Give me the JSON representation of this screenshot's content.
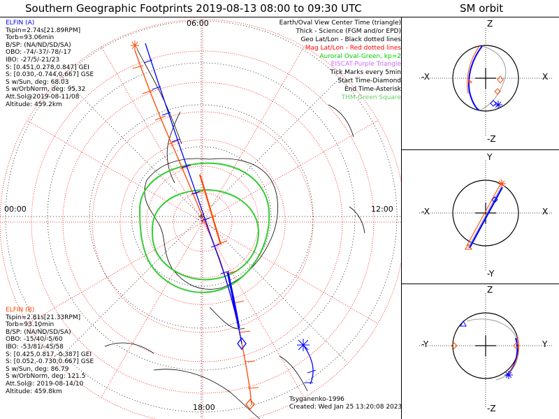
{
  "titles": {
    "main": "Southern Geographic Footprints 2019-08-13 08:00 to 09:30 UTC",
    "orbit": "SM orbit"
  },
  "map_labels": {
    "top": "06:00",
    "left": "00:00",
    "right": "12:00",
    "bottom": "18:00"
  },
  "elfin_a": {
    "name": "ELFIN (A)",
    "color": "#0000ff",
    "lines": [
      "Tspin=2.74s[21.89RPM]",
      "Torb=93.06min",
      "B/SP: (NA/ND/SD/SA)",
      "OBO: -74/-37/-78/-17",
      "IBO: -27/5/-21/23",
      "S: [0.451,0.278,0.847] GEI",
      "S: [0.030,-0.744,0.667] GSE",
      "S w/Sun, deg: 68.03",
      "S w/OrbNorm, deg: 95.32",
      "Att.Sol@2019-08-11/08",
      "Altitude: 459.2km"
    ]
  },
  "elfin_b": {
    "name": "ELFIN (B)",
    "color": "#ff4500",
    "lines": [
      "Tspin=2.81s[21.33RPM]",
      "Torb=93.10min",
      "B/SP: (NA/ND/SD/SA)",
      "OBO: -15/40/-5/60",
      "IBO: -53/81/-45/58",
      "S: [0.425,0.817,-0.387] GEI",
      "S: [0.052,-0.730,0.667] GSE",
      "S w/Sun, deg: 86.79",
      "S w/OrbNorm, deg: 121.5",
      "Att.Sol@: 2019-08-14/10",
      "Altitude: 459.8km"
    ]
  },
  "legend": [
    {
      "text": "Earth/Oval View Center Time (triangle)",
      "color": "#000000"
    },
    {
      "text": "Thick - Science (FGM and/or EPD)",
      "color": "#000000"
    },
    {
      "text": "Geo Lat/Lon - Black dotted lines",
      "color": "#000000"
    },
    {
      "text": "Mag Lat/Lon - Red dotted lines",
      "color": "#ff0000"
    },
    {
      "text": "Auroral Oval-Green, kp=2",
      "color": "#00cc00"
    },
    {
      "text": "EISCAT-Purple Triangle",
      "color": "#cc66ff"
    },
    {
      "text": "Tick Marks every 5min",
      "color": "#000000"
    },
    {
      "text": "Start Time-Diamond",
      "color": "#000000"
    },
    {
      "text": "End Time-Asterisk",
      "color": "#000000"
    },
    {
      "text": "THM-Green Square",
      "color": "#66cc66"
    }
  ],
  "footer": {
    "author": "Tsyganenko-1996",
    "created": "Created: Wed Jan 25 13:20:08 2023"
  },
  "orbit_panels": [
    {
      "top": "Z",
      "bottom": "-Z",
      "left": "-X",
      "right": "X"
    },
    {
      "top": "Y",
      "bottom": "-Y",
      "left": "-X",
      "right": "X"
    },
    {
      "top": "Z",
      "bottom": "-Z",
      "left": "-Y",
      "right": "Y"
    }
  ],
  "colors": {
    "elfin_a": "#0000ff",
    "elfin_b": "#ff4500",
    "auroral_oval": "#33cc33",
    "mag_grid": "#ff0000",
    "geo_grid": "#000000"
  },
  "chart_data": {
    "type": "polar-map",
    "projection": "southern-hemisphere",
    "auroral_oval_kp": 2,
    "tick_interval_min": 5,
    "series": [
      {
        "name": "ELFIN (A)",
        "color": "#0000ff"
      },
      {
        "name": "ELFIN (B)",
        "color": "#ff4500"
      }
    ]
  }
}
